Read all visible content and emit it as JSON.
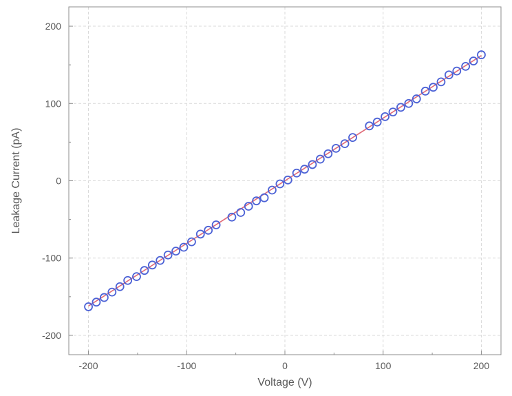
{
  "chart_data": {
    "type": "scatter",
    "title": "",
    "xlabel": "Voltage (V)",
    "ylabel": "Leakage Current (pA)",
    "xlim": [
      -220,
      220
    ],
    "ylim": [
      -225,
      225
    ],
    "x_ticks": [
      -200,
      -100,
      0,
      100,
      200
    ],
    "y_ticks": [
      -200,
      -100,
      0,
      100,
      200
    ],
    "grid": true,
    "legend": "none",
    "colors": {
      "marker": "#4c62d6",
      "fit_line": "#e06a78",
      "grid": "#d9d9d9",
      "axis": "#8c8c8c"
    },
    "series": [
      {
        "style": "open-circle",
        "x": [
          -200,
          -192,
          -184,
          -176,
          -168,
          -160,
          -151,
          -143,
          -135,
          -127,
          -119,
          -111,
          -103,
          -95,
          -86,
          -78,
          -70,
          -54,
          -45,
          -37,
          -29,
          -21,
          -13,
          -5,
          3,
          12,
          20,
          28,
          36,
          44,
          52,
          61,
          69,
          86,
          94,
          102,
          110,
          118,
          126,
          134,
          143,
          151,
          159,
          167,
          175,
          184,
          192,
          200
        ],
        "y": [
          -163,
          -157,
          -151,
          -144,
          -137,
          -129,
          -124,
          -116,
          -109,
          -103,
          -96,
          -91,
          -86,
          -79,
          -69,
          -64,
          -57,
          -47,
          -41,
          -33,
          -26,
          -22,
          -12,
          -4,
          1,
          10,
          15,
          21,
          28,
          35,
          42,
          48,
          56,
          71,
          76,
          83,
          89,
          95,
          100,
          106,
          116,
          121,
          128,
          137,
          142,
          148,
          155,
          163
        ]
      },
      {
        "style": "line",
        "x": [
          -200,
          200
        ],
        "y": [
          -162,
          162
        ]
      }
    ]
  }
}
